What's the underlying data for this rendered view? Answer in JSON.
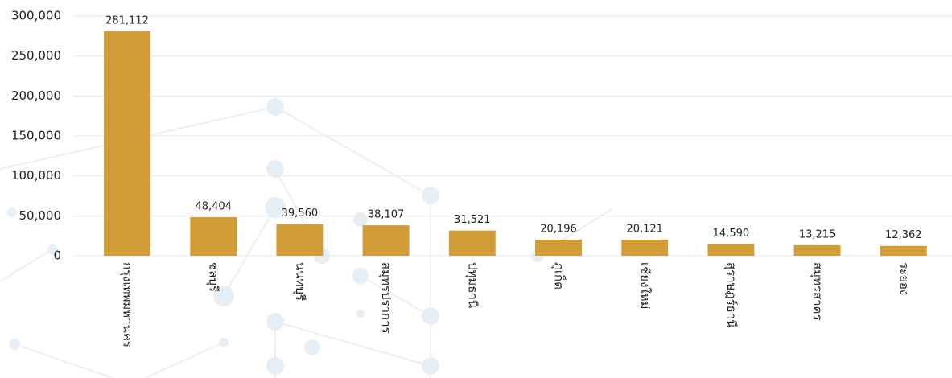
{
  "chart_data": {
    "type": "bar",
    "categories": [
      "กรุงเทพมหานคร",
      "ชลบุรี",
      "นนทบุรี",
      "สมุทรปราการ",
      "ปทุมธานี",
      "ภูเก็ต",
      "เชียงใหม่",
      "สุราษฎร์ธานี",
      "สมุทรสาคร",
      "ระยอง"
    ],
    "values": [
      281112,
      48404,
      39560,
      38107,
      31521,
      20196,
      20121,
      14590,
      13215,
      12362
    ],
    "value_labels": [
      "281,112",
      "48,404",
      "39,560",
      "38,107",
      "31,521",
      "20,196",
      "20,121",
      "14,590",
      "13,215",
      "12,362"
    ],
    "color": "#d19c35",
    "ylim": [
      0,
      300000
    ],
    "yticks": [
      0,
      {
        "value": 50000,
        "label": "50,000"
      },
      {
        "value": 100000,
        "label": "100,000"
      },
      {
        "value": 150000,
        "label": "150,000"
      },
      {
        "value": 200000,
        "label": "200,000"
      },
      {
        "value": 250000,
        "label": "250,000"
      },
      {
        "value": 300000,
        "label": "300,000"
      }
    ],
    "grid": true
  }
}
